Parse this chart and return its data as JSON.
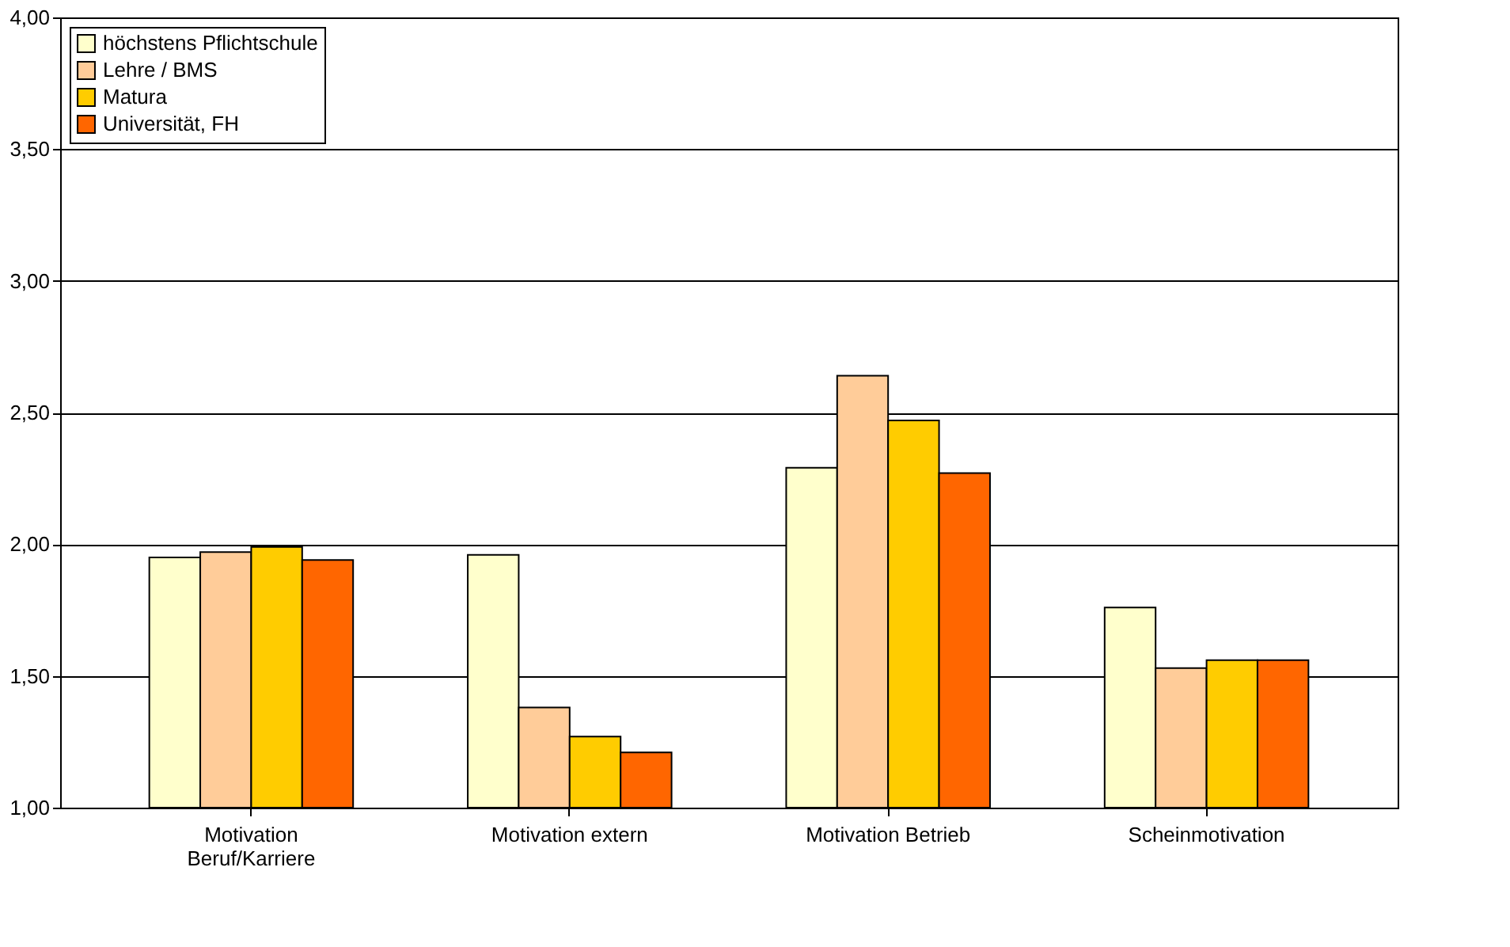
{
  "chart_data": {
    "type": "bar",
    "categories": [
      "Motivation Beruf/Karriere",
      "Motivation extern",
      "Motivation Betrieb",
      "Scheinmotivation"
    ],
    "series": [
      {
        "name": "höchstens Pflichtschule",
        "color": "#ffffcc",
        "values": [
          1.95,
          1.96,
          2.29,
          1.76
        ]
      },
      {
        "name": "Lehre / BMS",
        "color": "#ffcc99",
        "values": [
          1.97,
          1.38,
          2.64,
          1.53
        ]
      },
      {
        "name": "Matura",
        "color": "#ffcc00",
        "values": [
          1.99,
          1.27,
          2.47,
          1.56
        ]
      },
      {
        "name": "Universität, FH",
        "color": "#ff6600",
        "values": [
          1.94,
          1.21,
          2.27,
          1.56
        ]
      }
    ],
    "ylim": [
      1,
      4
    ],
    "yticks": [
      {
        "value": 1,
        "label": "1,00"
      },
      {
        "value": 1.5,
        "label": "1,50"
      },
      {
        "value": 2,
        "label": "2,00"
      },
      {
        "value": 2.5,
        "label": "2,50"
      },
      {
        "value": 3,
        "label": "3,00"
      },
      {
        "value": 3.5,
        "label": "3,50"
      },
      {
        "value": 4,
        "label": "4,00"
      }
    ],
    "grid": "y",
    "legend": "top left"
  }
}
